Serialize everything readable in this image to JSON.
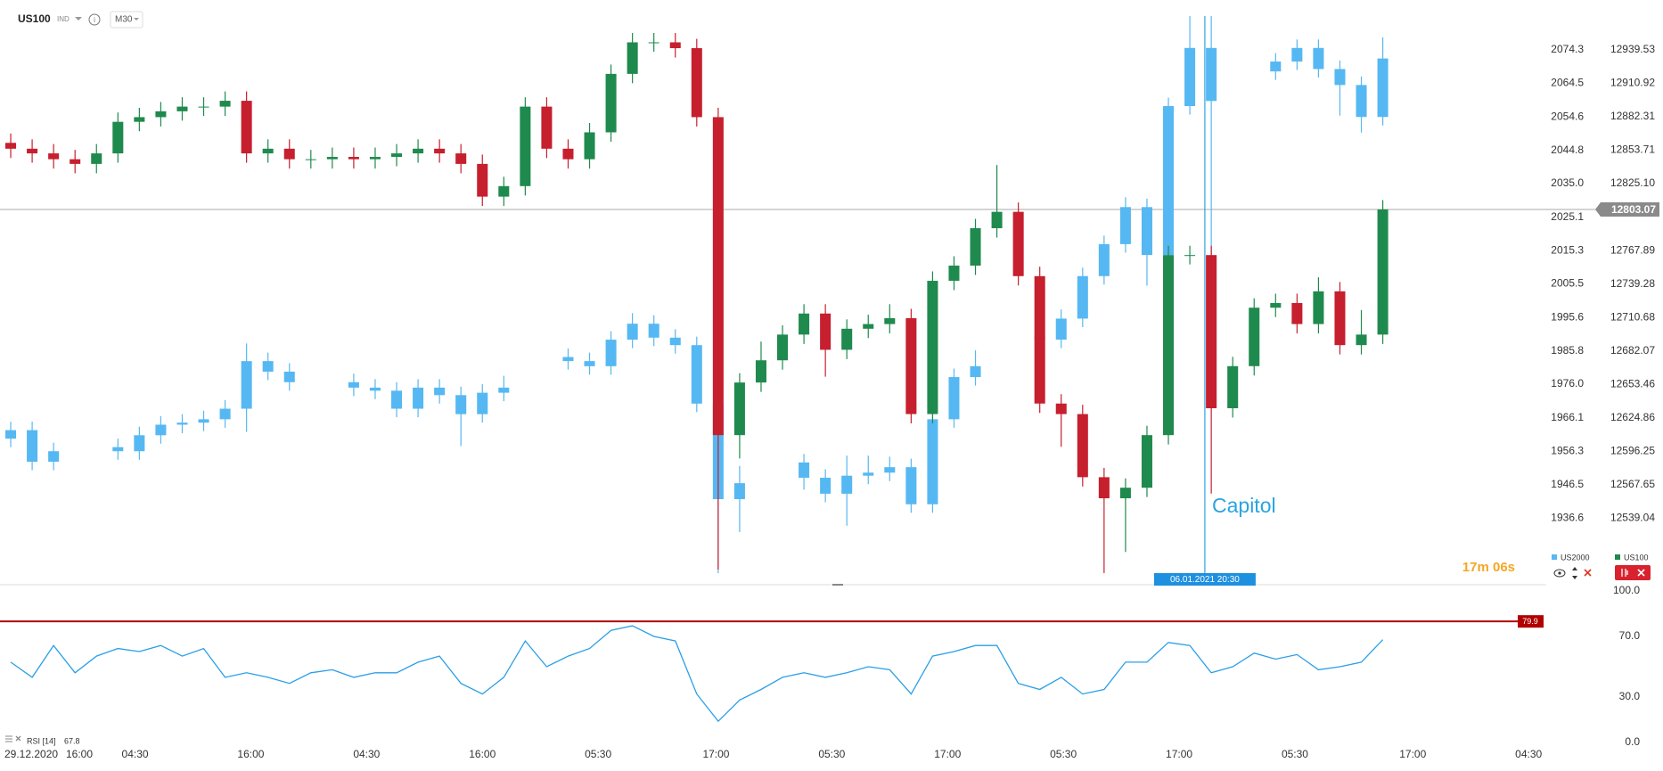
{
  "chart_data": [
    {
      "type": "candlestick",
      "title": "US100",
      "subtitle": "IND",
      "timeframe": "M30",
      "date_label": "29.12.2020",
      "annotation": "Capitol",
      "crosshair": {
        "x": 55.7,
        "label": "06.01.2021 20:30"
      },
      "timer": "17m 06s",
      "last_price": 12803.07,
      "xlim": [
        -0.5,
        71.5
      ],
      "xticks": [
        {
          "value": 3.2,
          "label": "16:00"
        },
        {
          "value": 5.8,
          "label": "04:30"
        },
        {
          "value": 11.2,
          "label": "16:00"
        },
        {
          "value": 16.6,
          "label": "04:30"
        },
        {
          "value": 22.0,
          "label": "16:00"
        },
        {
          "value": 27.4,
          "label": "05:30"
        },
        {
          "value": 32.9,
          "label": "17:00"
        },
        {
          "value": 38.3,
          "label": "05:30"
        },
        {
          "value": 43.7,
          "label": "17:00"
        },
        {
          "value": 49.1,
          "label": "05:30"
        },
        {
          "value": 54.5,
          "label": "17:00"
        },
        {
          "value": 59.9,
          "label": "05:30"
        },
        {
          "value": 65.4,
          "label": "17:00"
        },
        {
          "value": 70.8,
          "label": "04:30"
        }
      ],
      "ylim": [
        1917.3,
        2089.0
      ],
      "yticks": [
        2074.3,
        2064.5,
        2054.6,
        2044.8,
        {
          "value": 2035,
          "label": "2035.0"
        },
        2025.1,
        2015.3,
        2005.5,
        1995.6,
        1985.8,
        {
          "value": 1976,
          "label": "1976.0"
        },
        1966.1,
        1956.3,
        1946.5,
        1936.6
      ],
      "y2lim": [
        12482.8,
        12982.2
      ],
      "y2ticks": [
        12939.53,
        12910.92,
        12882.31,
        12853.71,
        {
          "value": 12825.1,
          "label": "12825.10"
        },
        12767.89,
        12739.28,
        12710.68,
        12682.07,
        12653.46,
        12624.86,
        12596.25,
        12567.65,
        12539.04
      ],
      "series": [
        {
          "name": "US2000",
          "axis": "y",
          "color": "#56b8f2",
          "open": [
            1960.0,
            1962.5,
            1953.2,
            null,
            null,
            1957.5,
            1956.3,
            1961.0,
            1964.1,
            1964.7,
            1965.7,
            1968.8,
            1982.8,
            1979.7,
            null,
            null,
            1976.6,
            1975.0,
            1974.1,
            1968.8,
            1975.0,
            1972.8,
            1967.2,
            1973.5,
            null,
            null,
            1984.0,
            1982.8,
            1981.3,
            1989.1,
            1993.8,
            1989.7,
            1987.5,
            1970.3,
            1942.2,
            null,
            null,
            1953.0,
            1948.5,
            1943.8,
            1949.1,
            1950.0,
            1951.6,
            1940.7,
            1965.7,
            1978.1,
            null,
            null,
            1990.0,
            1989.1,
            1995.3,
            2007.8,
            2017.2,
            2028.1,
            2014.0,
            2057.8,
            2074.9,
            null,
            null,
            2068.0,
            2070.9,
            2074.9,
            2068.7,
            2064.0,
            2054.6
          ],
          "high": [
            1965.0,
            1965.0,
            1958.8,
            null,
            null,
            1960.0,
            1963.5,
            1966.6,
            1967.2,
            1968.2,
            1971.3,
            1988.0,
            1985.3,
            1982.2,
            null,
            null,
            1979.1,
            1977.5,
            1976.6,
            1977.5,
            1977.5,
            1975.3,
            1976.0,
            1978.5,
            null,
            null,
            1986.5,
            1985.3,
            1991.6,
            1996.9,
            1996.3,
            1992.2,
            1990.0,
            1972.8,
            1952.0,
            null,
            null,
            1955.5,
            1951.0,
            1955.0,
            1955.0,
            1954.7,
            1954.1,
            1968.2,
            1980.6,
            1986.0,
            null,
            null,
            1996.0,
            1998.0,
            2010.3,
            2019.7,
            2031.0,
            2030.6,
            2060.3,
            2084.3,
            2084.3,
            null,
            null,
            2073.4,
            2077.4,
            2077.4,
            2071.2,
            2066.5,
            2078.0
          ],
          "low": [
            1957.5,
            1950.7,
            1950.7,
            null,
            null,
            1953.8,
            1953.8,
            1958.5,
            1961.6,
            1962.2,
            1963.2,
            1962.0,
            1977.2,
            1974.1,
            null,
            null,
            1972.5,
            1971.6,
            1966.3,
            1966.3,
            1970.3,
            1957.8,
            1964.7,
            1971.0,
            null,
            null,
            1980.3,
            1978.8,
            1978.8,
            1986.6,
            1987.2,
            1985.0,
            1967.8,
            1920.4,
            1932.5,
            null,
            null,
            1945.0,
            1941.3,
            1934.4,
            1946.6,
            1947.5,
            1938.2,
            1938.2,
            1963.2,
            1975.6,
            null,
            null,
            1985.0,
            1986.6,
            1992.8,
            2005.3,
            2014.7,
            2005.0,
            2011.5,
            2055.3,
            1970.3,
            null,
            null,
            2065.5,
            2068.4,
            2066.2,
            2055.0,
            2050.0,
            2052.1
          ],
          "close": [
            1962.5,
            1953.2,
            1956.3,
            null,
            null,
            1956.3,
            1961.0,
            1964.1,
            1964.7,
            1965.7,
            1968.8,
            1982.8,
            1979.7,
            1976.6,
            null,
            null,
            1975.0,
            1974.1,
            1968.8,
            1975.0,
            1972.8,
            1967.2,
            1973.5,
            1975.0,
            null,
            null,
            1982.8,
            1981.3,
            1989.1,
            1993.8,
            1989.7,
            1987.5,
            1970.3,
            1942.2,
            1946.9,
            null,
            null,
            1948.5,
            1943.8,
            1949.1,
            1950.0,
            1951.6,
            1940.7,
            1965.7,
            1978.1,
            1981.3,
            null,
            null,
            1989.1,
            1995.3,
            2007.8,
            2017.2,
            2028.1,
            2014.0,
            2057.8,
            2074.9,
            2059.3,
            null,
            null,
            2070.9,
            2074.9,
            2068.7,
            2064.0,
            2054.6,
            2071.8
          ]
        },
        {
          "name": "US100",
          "axis": "y2",
          "color": "#1f8a4d",
          "down_color": "#c61f2e",
          "open": [
            12860,
            12855,
            12851,
            12846,
            12842,
            12851,
            12878,
            12882,
            12887,
            12891,
            12891,
            12896,
            12851,
            12855,
            12846,
            12846,
            12848,
            12846,
            12848,
            12851,
            12855,
            12851,
            12842,
            12814,
            12823,
            12891,
            12855,
            12846,
            12869,
            12919,
            12946,
            12946,
            12941,
            12882,
            12610,
            12655,
            12674,
            12696,
            12714,
            12683,
            12701,
            12705,
            12710,
            12628,
            12742,
            12755,
            12787,
            12801,
            12746,
            12637,
            12628,
            12574,
            12556,
            12565,
            12610,
            12764,
            12764,
            12633,
            12669,
            12719,
            12723,
            12705,
            12733,
            12687,
            12696
          ],
          "high": [
            12868,
            12863,
            12859,
            12854,
            12859,
            12886,
            12890,
            12895,
            12899,
            12899,
            12904,
            12904,
            12863,
            12863,
            12854,
            12856,
            12856,
            12856,
            12859,
            12863,
            12863,
            12859,
            12850,
            12831,
            12899,
            12899,
            12863,
            12877,
            12927,
            12954,
            12954,
            12954,
            12949,
            12890,
            12663,
            12690,
            12704,
            12722,
            12722,
            12709,
            12713,
            12722,
            12718,
            12750,
            12763,
            12795,
            12841,
            12809,
            12754,
            12645,
            12636,
            12582,
            12573,
            12618,
            12772,
            12772,
            12772,
            12677,
            12727,
            12731,
            12731,
            12745,
            12741,
            12717,
            12811
          ],
          "low": [
            12847,
            12843,
            12838,
            12834,
            12834,
            12843,
            12870,
            12874,
            12879,
            12883,
            12883,
            12843,
            12843,
            12838,
            12838,
            12838,
            12838,
            12838,
            12840,
            12843,
            12843,
            12834,
            12806,
            12806,
            12815,
            12847,
            12838,
            12838,
            12861,
            12911,
            12938,
            12933,
            12874,
            12495,
            12590,
            12647,
            12666,
            12688,
            12660,
            12675,
            12693,
            12697,
            12620,
            12620,
            12734,
            12747,
            12779,
            12738,
            12629,
            12600,
            12566,
            12492,
            12510,
            12557,
            12602,
            12756,
            12560,
            12625,
            12661,
            12711,
            12697,
            12697,
            12679,
            12679,
            12688
          ],
          "close": [
            12855,
            12851,
            12846,
            12842,
            12851,
            12878,
            12882,
            12887,
            12891,
            12891,
            12896,
            12851,
            12855,
            12846,
            12846,
            12848,
            12846,
            12848,
            12851,
            12855,
            12851,
            12842,
            12814,
            12823,
            12891,
            12855,
            12846,
            12869,
            12919,
            12946,
            12946,
            12941,
            12882,
            12610,
            12655,
            12674,
            12696,
            12714,
            12683,
            12701,
            12705,
            12710,
            12628,
            12742,
            12755,
            12787,
            12801,
            12746,
            12637,
            12628,
            12574,
            12556,
            12565,
            12610,
            12764,
            12764,
            12633,
            12669,
            12719,
            12723,
            12705,
            12733,
            12687,
            12696,
            12803.07
          ]
        }
      ]
    },
    {
      "type": "line",
      "name": "RSI [14]",
      "color": "#2a9fe8",
      "level": 79.9,
      "level_color": "#b00000",
      "xlim": [
        -0.5,
        71.5
      ],
      "ylim": [
        0,
        100
      ],
      "yticks": [
        {
          "value": 100,
          "label": "100.0"
        },
        {
          "value": 70,
          "label": "70.0"
        },
        {
          "value": 30,
          "label": "30.0"
        },
        {
          "value": 0,
          "label": "0.0"
        }
      ],
      "values": [
        53,
        43,
        64,
        46,
        57,
        62,
        60,
        64,
        57,
        62,
        43,
        46,
        43,
        39,
        46,
        48,
        43,
        46,
        46,
        53,
        57,
        39,
        32,
        43,
        67,
        50,
        57,
        62,
        74,
        77,
        70,
        67,
        32,
        14,
        28,
        35,
        43,
        46,
        43,
        46,
        50,
        48,
        32,
        57,
        60,
        64,
        64,
        39,
        35,
        43,
        32,
        35,
        53,
        53,
        66,
        64,
        46,
        50,
        59,
        55,
        58,
        48,
        50,
        53,
        67.8
      ]
    }
  ]
}
